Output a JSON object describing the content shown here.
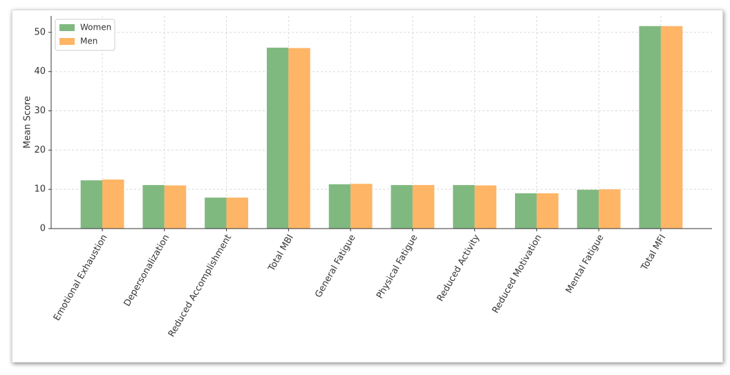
{
  "chart_data": {
    "type": "bar",
    "categories": [
      "Emotional Exhaustion",
      "Depersonalization",
      "Reduced Accomplishment",
      "Total MBI",
      "General Fatigue",
      "Physical Fatigue",
      "Reduced Activity",
      "Reduced Motivation",
      "Mental Fatigue",
      "Total MFI"
    ],
    "series": [
      {
        "name": "Women",
        "color": "#80b980",
        "values": [
          12.3,
          11.1,
          7.9,
          46.1,
          11.3,
          11.1,
          11.1,
          9.0,
          9.9,
          51.6
        ]
      },
      {
        "name": "Men",
        "color": "#ffb566",
        "values": [
          12.5,
          11.0,
          7.9,
          46.0,
          11.4,
          11.1,
          11.0,
          9.0,
          10.0,
          51.6
        ]
      }
    ],
    "ylabel": "Mean Score",
    "ylim": [
      0,
      54.2
    ],
    "yticks": [
      0,
      10,
      20,
      30,
      40,
      50
    ],
    "grid": true,
    "legend": "upper left"
  }
}
